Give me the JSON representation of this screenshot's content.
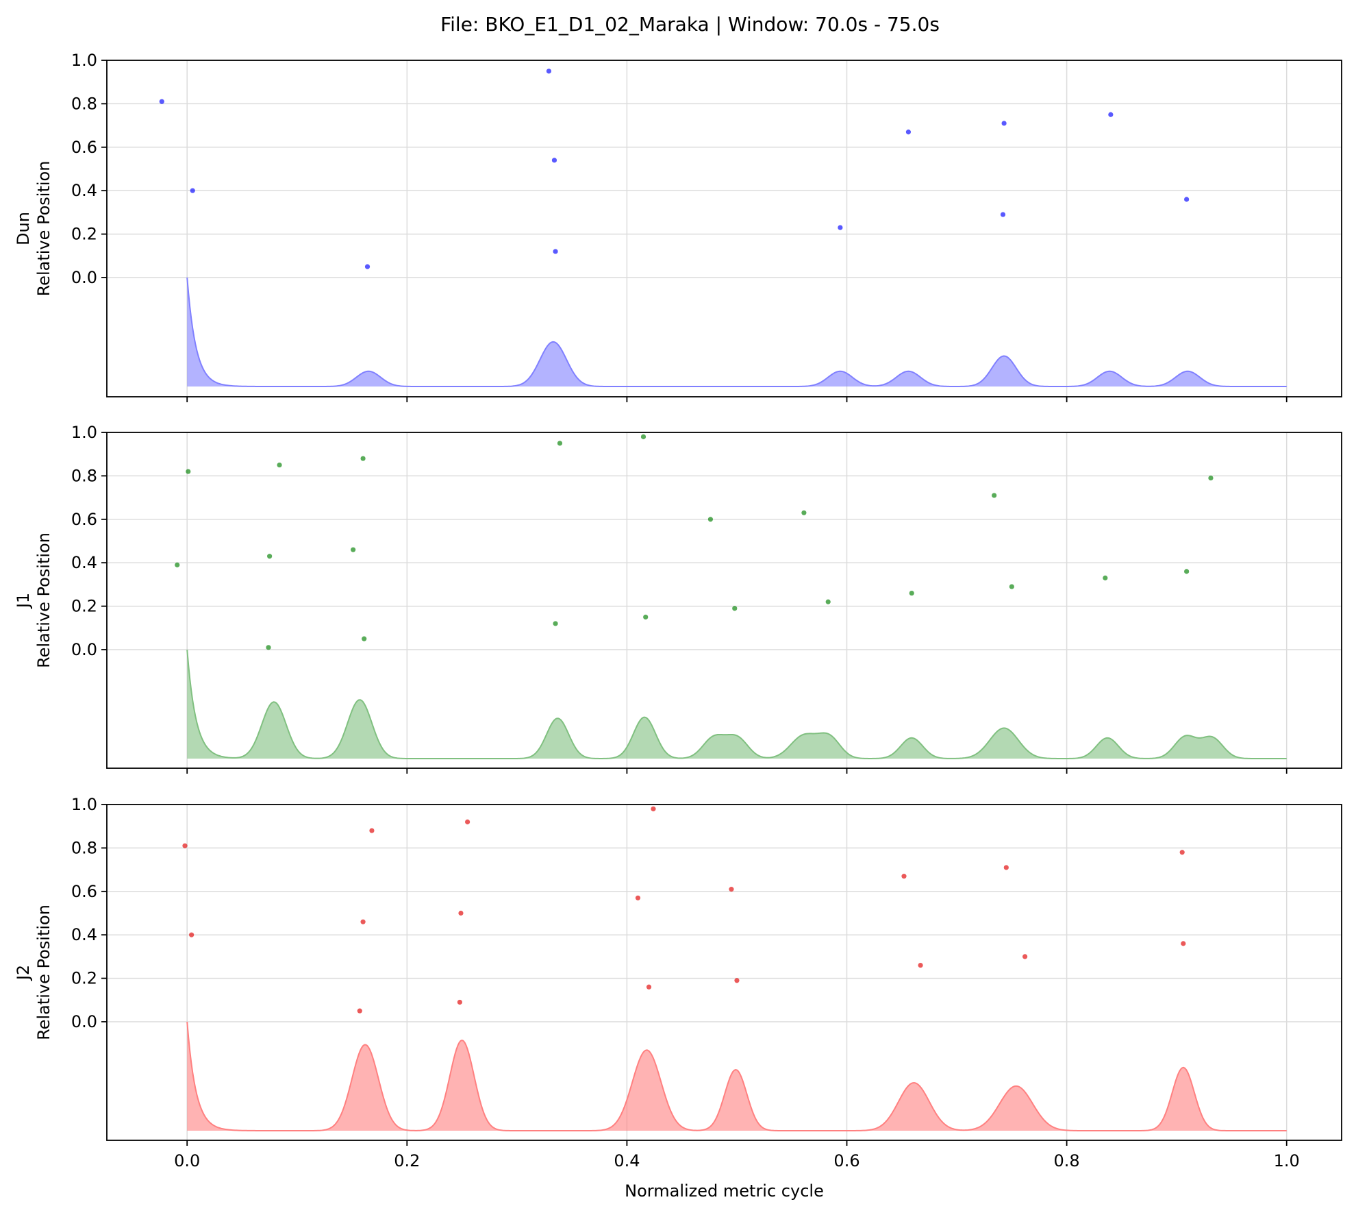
{
  "chart_data": {
    "type": "scatter",
    "title": "File: BKO_E1_D1_02_Maraka | Window: 70.0s - 75.0s",
    "xlabel": "Normalized metric cycle",
    "xlim": [
      -0.073,
      1.05
    ],
    "x_ticks": [
      "0.0",
      "0.2",
      "0.4",
      "0.6",
      "0.8",
      "1.0"
    ],
    "y_ticks": [
      "0.0",
      "0.2",
      "0.4",
      "0.6",
      "0.8",
      "1.0"
    ],
    "ylim": [
      0,
      1
    ],
    "grid": true,
    "panels": [
      {
        "name": "Dun",
        "ylabel_line1": "Dun",
        "ylabel_line2": "Relative Position",
        "color": "#0000ff",
        "fill_color": "#8080ff",
        "points": [
          {
            "x": -0.023,
            "y": 0.81
          },
          {
            "x": 0.005,
            "y": 0.4
          },
          {
            "x": 0.164,
            "y": 0.05
          },
          {
            "x": 0.329,
            "y": 0.95
          },
          {
            "x": 0.334,
            "y": 0.54
          },
          {
            "x": 0.335,
            "y": 0.12
          },
          {
            "x": 0.594,
            "y": 0.23
          },
          {
            "x": 0.656,
            "y": 0.67
          },
          {
            "x": 0.743,
            "y": 0.71
          },
          {
            "x": 0.742,
            "y": 0.29
          },
          {
            "x": 0.84,
            "y": 0.75
          },
          {
            "x": 0.909,
            "y": 0.36
          }
        ],
        "density_peaks": [
          {
            "center": 0.0,
            "height": 1.0,
            "width": 0.008,
            "one_sided": true
          },
          {
            "center": 0.165,
            "height": 0.14,
            "width": 0.011
          },
          {
            "center": 0.333,
            "height": 0.41,
            "width": 0.012
          },
          {
            "center": 0.594,
            "height": 0.14,
            "width": 0.011
          },
          {
            "center": 0.656,
            "height": 0.14,
            "width": 0.011
          },
          {
            "center": 0.743,
            "height": 0.28,
            "width": 0.011
          },
          {
            "center": 0.839,
            "height": 0.14,
            "width": 0.011
          },
          {
            "center": 0.91,
            "height": 0.14,
            "width": 0.011
          }
        ]
      },
      {
        "name": "J1",
        "ylabel_line1": "J1",
        "ylabel_line2": "Relative Position",
        "color": "#008000",
        "fill_color": "#80c080",
        "points": [
          {
            "x": 0.001,
            "y": 0.82
          },
          {
            "x": -0.009,
            "y": 0.39
          },
          {
            "x": 0.084,
            "y": 0.85
          },
          {
            "x": 0.075,
            "y": 0.43
          },
          {
            "x": 0.074,
            "y": 0.01
          },
          {
            "x": 0.16,
            "y": 0.88
          },
          {
            "x": 0.151,
            "y": 0.46
          },
          {
            "x": 0.161,
            "y": 0.05
          },
          {
            "x": 0.339,
            "y": 0.95
          },
          {
            "x": 0.335,
            "y": 0.12
          },
          {
            "x": 0.415,
            "y": 0.98
          },
          {
            "x": 0.417,
            "y": 0.15
          },
          {
            "x": 0.476,
            "y": 0.6
          },
          {
            "x": 0.498,
            "y": 0.19
          },
          {
            "x": 0.561,
            "y": 0.63
          },
          {
            "x": 0.583,
            "y": 0.22
          },
          {
            "x": 0.659,
            "y": 0.26
          },
          {
            "x": 0.734,
            "y": 0.71
          },
          {
            "x": 0.75,
            "y": 0.29
          },
          {
            "x": 0.835,
            "y": 0.33
          },
          {
            "x": 0.909,
            "y": 0.36
          },
          {
            "x": 0.931,
            "y": 0.79
          }
        ],
        "density_peaks": [
          {
            "center": 0.0,
            "height": 1.0,
            "width": 0.008,
            "one_sided": true
          },
          {
            "center": 0.079,
            "height": 0.52,
            "width": 0.011
          },
          {
            "center": 0.157,
            "height": 0.54,
            "width": 0.011
          },
          {
            "center": 0.337,
            "height": 0.37,
            "width": 0.01
          },
          {
            "center": 0.416,
            "height": 0.38,
            "width": 0.01
          },
          {
            "center": 0.479,
            "height": 0.19,
            "width": 0.01
          },
          {
            "center": 0.5,
            "height": 0.19,
            "width": 0.01
          },
          {
            "center": 0.561,
            "height": 0.21,
            "width": 0.012
          },
          {
            "center": 0.584,
            "height": 0.19,
            "width": 0.01
          },
          {
            "center": 0.659,
            "height": 0.19,
            "width": 0.01
          },
          {
            "center": 0.743,
            "height": 0.28,
            "width": 0.013
          },
          {
            "center": 0.837,
            "height": 0.19,
            "width": 0.01
          },
          {
            "center": 0.908,
            "height": 0.2,
            "width": 0.01
          },
          {
            "center": 0.932,
            "height": 0.19,
            "width": 0.01
          }
        ]
      },
      {
        "name": "J2",
        "ylabel_line1": "J2",
        "ylabel_line2": "Relative Position",
        "color": "#e00000",
        "fill_color": "#ff8080",
        "points": [
          {
            "x": -0.002,
            "y": 0.81
          },
          {
            "x": 0.004,
            "y": 0.4
          },
          {
            "x": 0.168,
            "y": 0.88
          },
          {
            "x": 0.16,
            "y": 0.46
          },
          {
            "x": 0.157,
            "y": 0.05
          },
          {
            "x": 0.255,
            "y": 0.92
          },
          {
            "x": 0.249,
            "y": 0.5
          },
          {
            "x": 0.248,
            "y": 0.09
          },
          {
            "x": 0.424,
            "y": 0.98
          },
          {
            "x": 0.41,
            "y": 0.57
          },
          {
            "x": 0.42,
            "y": 0.16
          },
          {
            "x": 0.495,
            "y": 0.61
          },
          {
            "x": 0.5,
            "y": 0.19
          },
          {
            "x": 0.652,
            "y": 0.67
          },
          {
            "x": 0.667,
            "y": 0.26
          },
          {
            "x": 0.745,
            "y": 0.71
          },
          {
            "x": 0.762,
            "y": 0.3
          },
          {
            "x": 0.905,
            "y": 0.78
          },
          {
            "x": 0.906,
            "y": 0.36
          }
        ],
        "density_peaks": [
          {
            "center": 0.0,
            "height": 1.0,
            "width": 0.008,
            "one_sided": true
          },
          {
            "center": 0.162,
            "height": 0.79,
            "width": 0.012
          },
          {
            "center": 0.25,
            "height": 0.83,
            "width": 0.011
          },
          {
            "center": 0.418,
            "height": 0.74,
            "width": 0.013
          },
          {
            "center": 0.499,
            "height": 0.56,
            "width": 0.01
          },
          {
            "center": 0.661,
            "height": 0.44,
            "width": 0.014
          },
          {
            "center": 0.754,
            "height": 0.41,
            "width": 0.015
          },
          {
            "center": 0.906,
            "height": 0.58,
            "width": 0.01
          }
        ]
      }
    ]
  }
}
